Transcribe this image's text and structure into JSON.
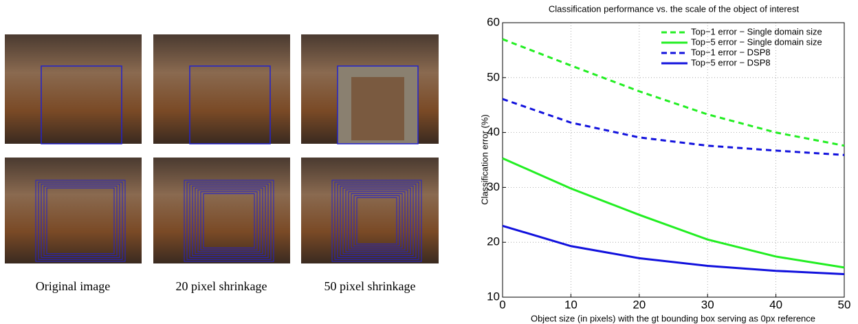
{
  "panels": {
    "captions": [
      "Original image",
      "20 pixel shrinkage",
      "50 pixel shrinkage"
    ]
  },
  "chart_data": {
    "type": "line",
    "title": "Classification performance vs. the scale of the object of interest",
    "x_label": "Object size (in pixels) with the gt bounding box serving as 0px reference",
    "y_label": "Classification error (%)",
    "x": [
      0,
      10,
      20,
      30,
      40,
      50
    ],
    "series": [
      {
        "name": "Top−1 error − Single domain size",
        "color": "#22ee22",
        "style": "dashed",
        "values": [
          57,
          52.2,
          47.5,
          43.3,
          40,
          37.6
        ]
      },
      {
        "name": "Top−5 error − Single domain size",
        "color": "#22ee22",
        "style": "solid",
        "values": [
          35.3,
          29.8,
          25,
          20.5,
          17.4,
          15.4
        ]
      },
      {
        "name": "Top−1 error − DSP8",
        "color": "#1111dd",
        "style": "dashed",
        "values": [
          46.1,
          41.8,
          39.1,
          37.6,
          36.7,
          35.9
        ]
      },
      {
        "name": "Top−5 error − DSP8",
        "color": "#1111dd",
        "style": "solid",
        "values": [
          23,
          19.3,
          17.1,
          15.7,
          14.8,
          14.2
        ]
      }
    ],
    "xlim": [
      0,
      50
    ],
    "xticks": [
      0,
      10,
      20,
      30,
      40,
      50
    ],
    "ylim": [
      10,
      60
    ],
    "yticks": [
      10,
      20,
      30,
      40,
      50,
      60
    ],
    "grid": true,
    "legend": "upper right"
  }
}
